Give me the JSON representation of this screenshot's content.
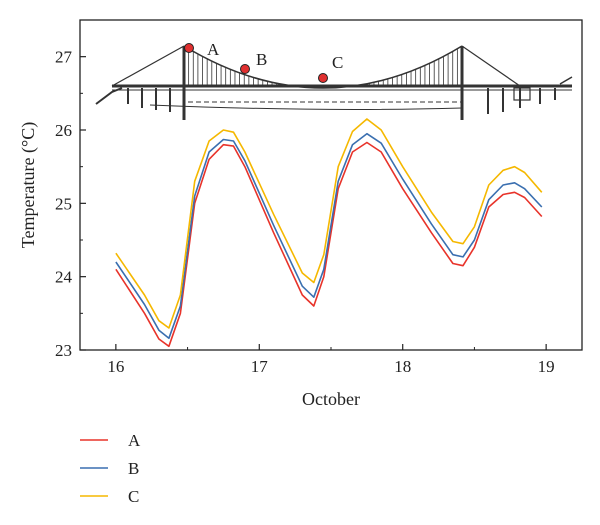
{
  "chart_data": {
    "type": "line",
    "xlabel": "October",
    "ylabel": "Temperature (°C)",
    "xlim": [
      15.75,
      19.25
    ],
    "ylim": [
      23,
      27.5
    ],
    "xticks": [
      16,
      17,
      18,
      19
    ],
    "yticks": [
      23,
      24,
      25,
      26,
      27
    ],
    "grid": false,
    "legend_position": "below-left",
    "inset": {
      "description_icon": "suspension-bridge-icon",
      "points": [
        {
          "label": "A",
          "color": "#e03030"
        },
        {
          "label": "B",
          "color": "#e03030"
        },
        {
          "label": "C",
          "color": "#e03030"
        }
      ]
    },
    "series": [
      {
        "name": "A",
        "color": "#e8332a",
        "x": [
          16.0,
          16.2,
          16.3,
          16.37,
          16.45,
          16.55,
          16.65,
          16.75,
          16.82,
          16.9,
          17.1,
          17.3,
          17.38,
          17.45,
          17.55,
          17.65,
          17.75,
          17.85,
          18.0,
          18.2,
          18.35,
          18.42,
          18.5,
          18.6,
          18.7,
          18.78,
          18.85,
          18.97
        ],
        "y": [
          24.1,
          23.5,
          23.15,
          23.05,
          23.5,
          25.0,
          25.6,
          25.8,
          25.78,
          25.5,
          24.6,
          23.75,
          23.6,
          24.0,
          25.2,
          25.7,
          25.83,
          25.7,
          25.2,
          24.6,
          24.18,
          24.15,
          24.4,
          24.95,
          25.12,
          25.15,
          25.08,
          24.82
        ]
      },
      {
        "name": "B",
        "color": "#3a6fb0",
        "x": [
          16.0,
          16.2,
          16.3,
          16.37,
          16.45,
          16.55,
          16.65,
          16.75,
          16.82,
          16.9,
          17.1,
          17.3,
          17.38,
          17.45,
          17.55,
          17.65,
          17.75,
          17.85,
          18.0,
          18.2,
          18.35,
          18.42,
          18.5,
          18.6,
          18.7,
          18.78,
          18.85,
          18.97
        ],
        "y": [
          24.2,
          23.62,
          23.27,
          23.16,
          23.6,
          25.1,
          25.7,
          25.87,
          25.85,
          25.58,
          24.7,
          23.87,
          23.72,
          24.1,
          25.3,
          25.8,
          25.95,
          25.82,
          25.33,
          24.72,
          24.3,
          24.27,
          24.5,
          25.05,
          25.25,
          25.28,
          25.2,
          24.95
        ]
      },
      {
        "name": "C",
        "color": "#f5b800",
        "x": [
          16.0,
          16.2,
          16.3,
          16.37,
          16.45,
          16.55,
          16.65,
          16.75,
          16.82,
          16.9,
          17.1,
          17.3,
          17.38,
          17.45,
          17.55,
          17.65,
          17.75,
          17.85,
          18.0,
          18.2,
          18.35,
          18.42,
          18.5,
          18.6,
          18.7,
          18.78,
          18.85,
          18.97
        ],
        "y": [
          24.32,
          23.75,
          23.4,
          23.3,
          23.75,
          25.3,
          25.85,
          26.0,
          25.97,
          25.7,
          24.85,
          24.05,
          23.92,
          24.3,
          25.5,
          25.98,
          26.15,
          26.0,
          25.5,
          24.88,
          24.48,
          24.45,
          24.68,
          25.25,
          25.45,
          25.5,
          25.42,
          25.15
        ]
      }
    ]
  }
}
